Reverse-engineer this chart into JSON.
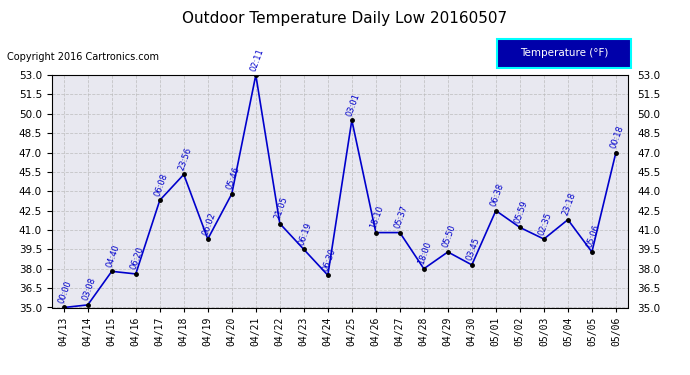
{
  "title": "Outdoor Temperature Daily Low 20160507",
  "copyright": "Copyright 2016 Cartronics.com",
  "legend_label": "Temperature (°F)",
  "ylim": [
    35.0,
    53.0
  ],
  "yticks": [
    35.0,
    36.5,
    38.0,
    39.5,
    41.0,
    42.5,
    44.0,
    45.5,
    47.0,
    48.5,
    50.0,
    51.5,
    53.0
  ],
  "x_dates": [
    "04/13",
    "04/14",
    "04/15",
    "04/16",
    "04/17",
    "04/18",
    "04/19",
    "04/20",
    "04/21",
    "04/22",
    "04/23",
    "04/24",
    "04/25",
    "04/26",
    "04/27",
    "04/28",
    "04/29",
    "04/30",
    "05/01",
    "05/02",
    "05/03",
    "05/04",
    "05/05",
    "05/06"
  ],
  "data_points": [
    {
      "date": "04/13",
      "time": "00:00",
      "temp": 35.0
    },
    {
      "date": "04/14",
      "time": "03:08",
      "temp": 35.2
    },
    {
      "date": "04/15",
      "time": "04:40",
      "temp": 37.8
    },
    {
      "date": "04/16",
      "time": "06:20",
      "temp": 37.6
    },
    {
      "date": "04/17",
      "time": "06:08",
      "temp": 43.3
    },
    {
      "date": "04/18",
      "time": "23:56",
      "temp": 45.3
    },
    {
      "date": "04/19",
      "time": "06:02",
      "temp": 40.3
    },
    {
      "date": "04/20",
      "time": "05:46",
      "temp": 43.8
    },
    {
      "date": "04/21",
      "time": "02:11",
      "temp": 53.0
    },
    {
      "date": "04/22",
      "time": "21:05",
      "temp": 41.5
    },
    {
      "date": "04/23",
      "time": "06:19",
      "temp": 39.5
    },
    {
      "date": "04/24",
      "time": "06:30",
      "temp": 37.5
    },
    {
      "date": "04/25",
      "time": "03:01",
      "temp": 49.5
    },
    {
      "date": "04/26",
      "time": "18:10",
      "temp": 40.8
    },
    {
      "date": "04/27",
      "time": "05:37",
      "temp": 40.8
    },
    {
      "date": "04/28",
      "time": "18:00",
      "temp": 38.0
    },
    {
      "date": "04/29",
      "time": "05:50",
      "temp": 39.3
    },
    {
      "date": "04/30",
      "time": "03:45",
      "temp": 38.3
    },
    {
      "date": "05/01",
      "time": "06:38",
      "temp": 42.5
    },
    {
      "date": "05/02",
      "time": "05:59",
      "temp": 41.2
    },
    {
      "date": "05/03",
      "time": "02:35",
      "temp": 40.3
    },
    {
      "date": "05/04",
      "time": "23:18",
      "temp": 41.8
    },
    {
      "date": "05/05",
      "time": "05:06",
      "temp": 39.3
    },
    {
      "date": "05/06",
      "time": "00:18",
      "temp": 47.0
    }
  ],
  "line_color": "#0000cc",
  "marker_color": "#000000",
  "label_color": "#0000cc",
  "bg_color": "#ffffff",
  "plot_bg_color": "#e8e8f0",
  "grid_color": "#bbbbbb",
  "title_color": "#000000",
  "copyright_color": "#000000",
  "legend_bg": "#0000aa",
  "legend_text_color": "#ffffff",
  "legend_border_color": "#00ffff"
}
